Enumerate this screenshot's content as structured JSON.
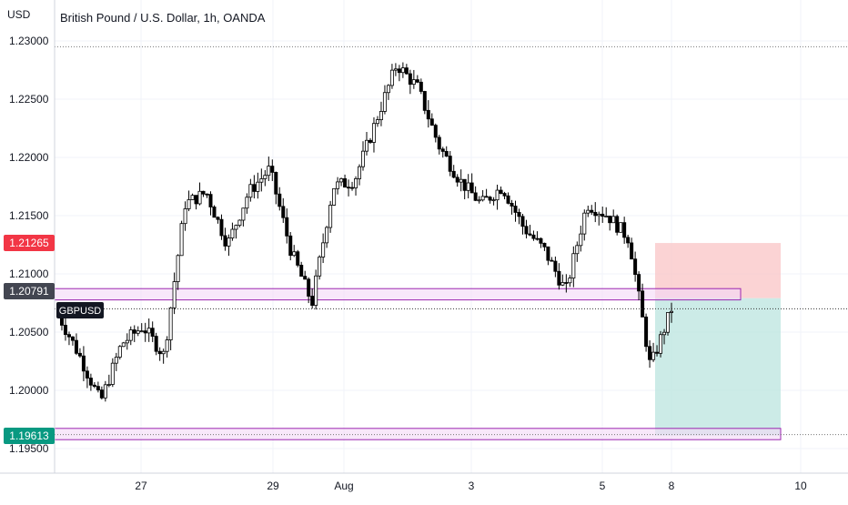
{
  "header": {
    "currency": "USD",
    "title": "British Pound / U.S. Dollar, 1h, OANDA"
  },
  "symbol_label": "GBPUSD",
  "price_tags": {
    "stop": "1.21265",
    "entry": "1.20791",
    "target": "1.19613"
  },
  "colors": {
    "up_candle": "#ffffff",
    "down_candle": "#000000",
    "wick": "#000000",
    "stop_tag": "#f23645",
    "entry_tag": "#434651",
    "target_tag": "#089981",
    "stop_zone": "#f9c4c6",
    "target_zone": "#bfe6e1",
    "band_fill": "#f3d9f7",
    "band_stroke": "#9c27b0",
    "grid": "#f0f3fa"
  },
  "chart_data": {
    "type": "candlestick",
    "title": "British Pound / U.S. Dollar, 1h, OANDA",
    "symbol": "GBPUSD",
    "timeframe": "1h",
    "y_unit": "USD",
    "ylim": [
      1.193,
      1.231
    ],
    "y_ticks": [
      "1.23000",
      "1.22500",
      "1.22000",
      "1.21500",
      "1.21000",
      "1.20500",
      "1.20000",
      "1.19500"
    ],
    "x_ticks": [
      "27",
      "29",
      "Aug",
      "3",
      "5",
      "8",
      "10"
    ],
    "grid": true,
    "close_series": [
      {
        "date": "Jul 25",
        "close": 1.2065
      },
      {
        "date": "Jul 26",
        "close": 1.203
      },
      {
        "date": "Jul 26",
        "close": 1.199
      },
      {
        "date": "Jul 27",
        "close": 1.204
      },
      {
        "date": "Jul 27",
        "close": 1.2055
      },
      {
        "date": "Jul 28",
        "close": 1.203
      },
      {
        "date": "Jul 28",
        "close": 1.216
      },
      {
        "date": "Jul 28",
        "close": 1.217
      },
      {
        "date": "Jul 29",
        "close": 1.2125
      },
      {
        "date": "Jul 29",
        "close": 1.217
      },
      {
        "date": "Jul 29",
        "close": 1.219
      },
      {
        "date": "Jul 31",
        "close": 1.212
      },
      {
        "date": "Jul 31",
        "close": 1.2075
      },
      {
        "date": "Aug 1",
        "close": 1.2175
      },
      {
        "date": "Aug 1",
        "close": 1.218
      },
      {
        "date": "Aug 2",
        "close": 1.223
      },
      {
        "date": "Aug 2",
        "close": 1.228
      },
      {
        "date": "Aug 2",
        "close": 1.226
      },
      {
        "date": "Aug 3",
        "close": 1.221
      },
      {
        "date": "Aug 3",
        "close": 1.218
      },
      {
        "date": "Aug 4",
        "close": 1.216
      },
      {
        "date": "Aug 4",
        "close": 1.2175
      },
      {
        "date": "Aug 4",
        "close": 1.214
      },
      {
        "date": "Aug 5",
        "close": 1.212
      },
      {
        "date": "Aug 5",
        "close": 1.2085
      },
      {
        "date": "Aug 5",
        "close": 1.216
      },
      {
        "date": "Aug 5",
        "close": 1.215
      },
      {
        "date": "Aug 5",
        "close": 1.213
      },
      {
        "date": "Aug 5",
        "close": 1.202
      },
      {
        "date": "Aug 8",
        "close": 1.207
      }
    ],
    "horizontal_levels": [
      {
        "label": "1.20791",
        "value": 1.20791
      },
      {
        "label": "1.21265",
        "value": 1.21265
      },
      {
        "label": "1.19613",
        "value": 1.19613
      }
    ],
    "zones": [
      {
        "name": "resistance band",
        "from": 1.208,
        "to": 1.2085
      },
      {
        "name": "support band",
        "from": 1.196,
        "to": 1.1965
      },
      {
        "name": "stop zone",
        "from": 1.20791,
        "to": 1.21265
      },
      {
        "name": "target zone",
        "from": 1.19613,
        "to": 1.20791
      }
    ],
    "dotted_levels": [
      1.2295,
      1.207,
      1.1962
    ]
  }
}
